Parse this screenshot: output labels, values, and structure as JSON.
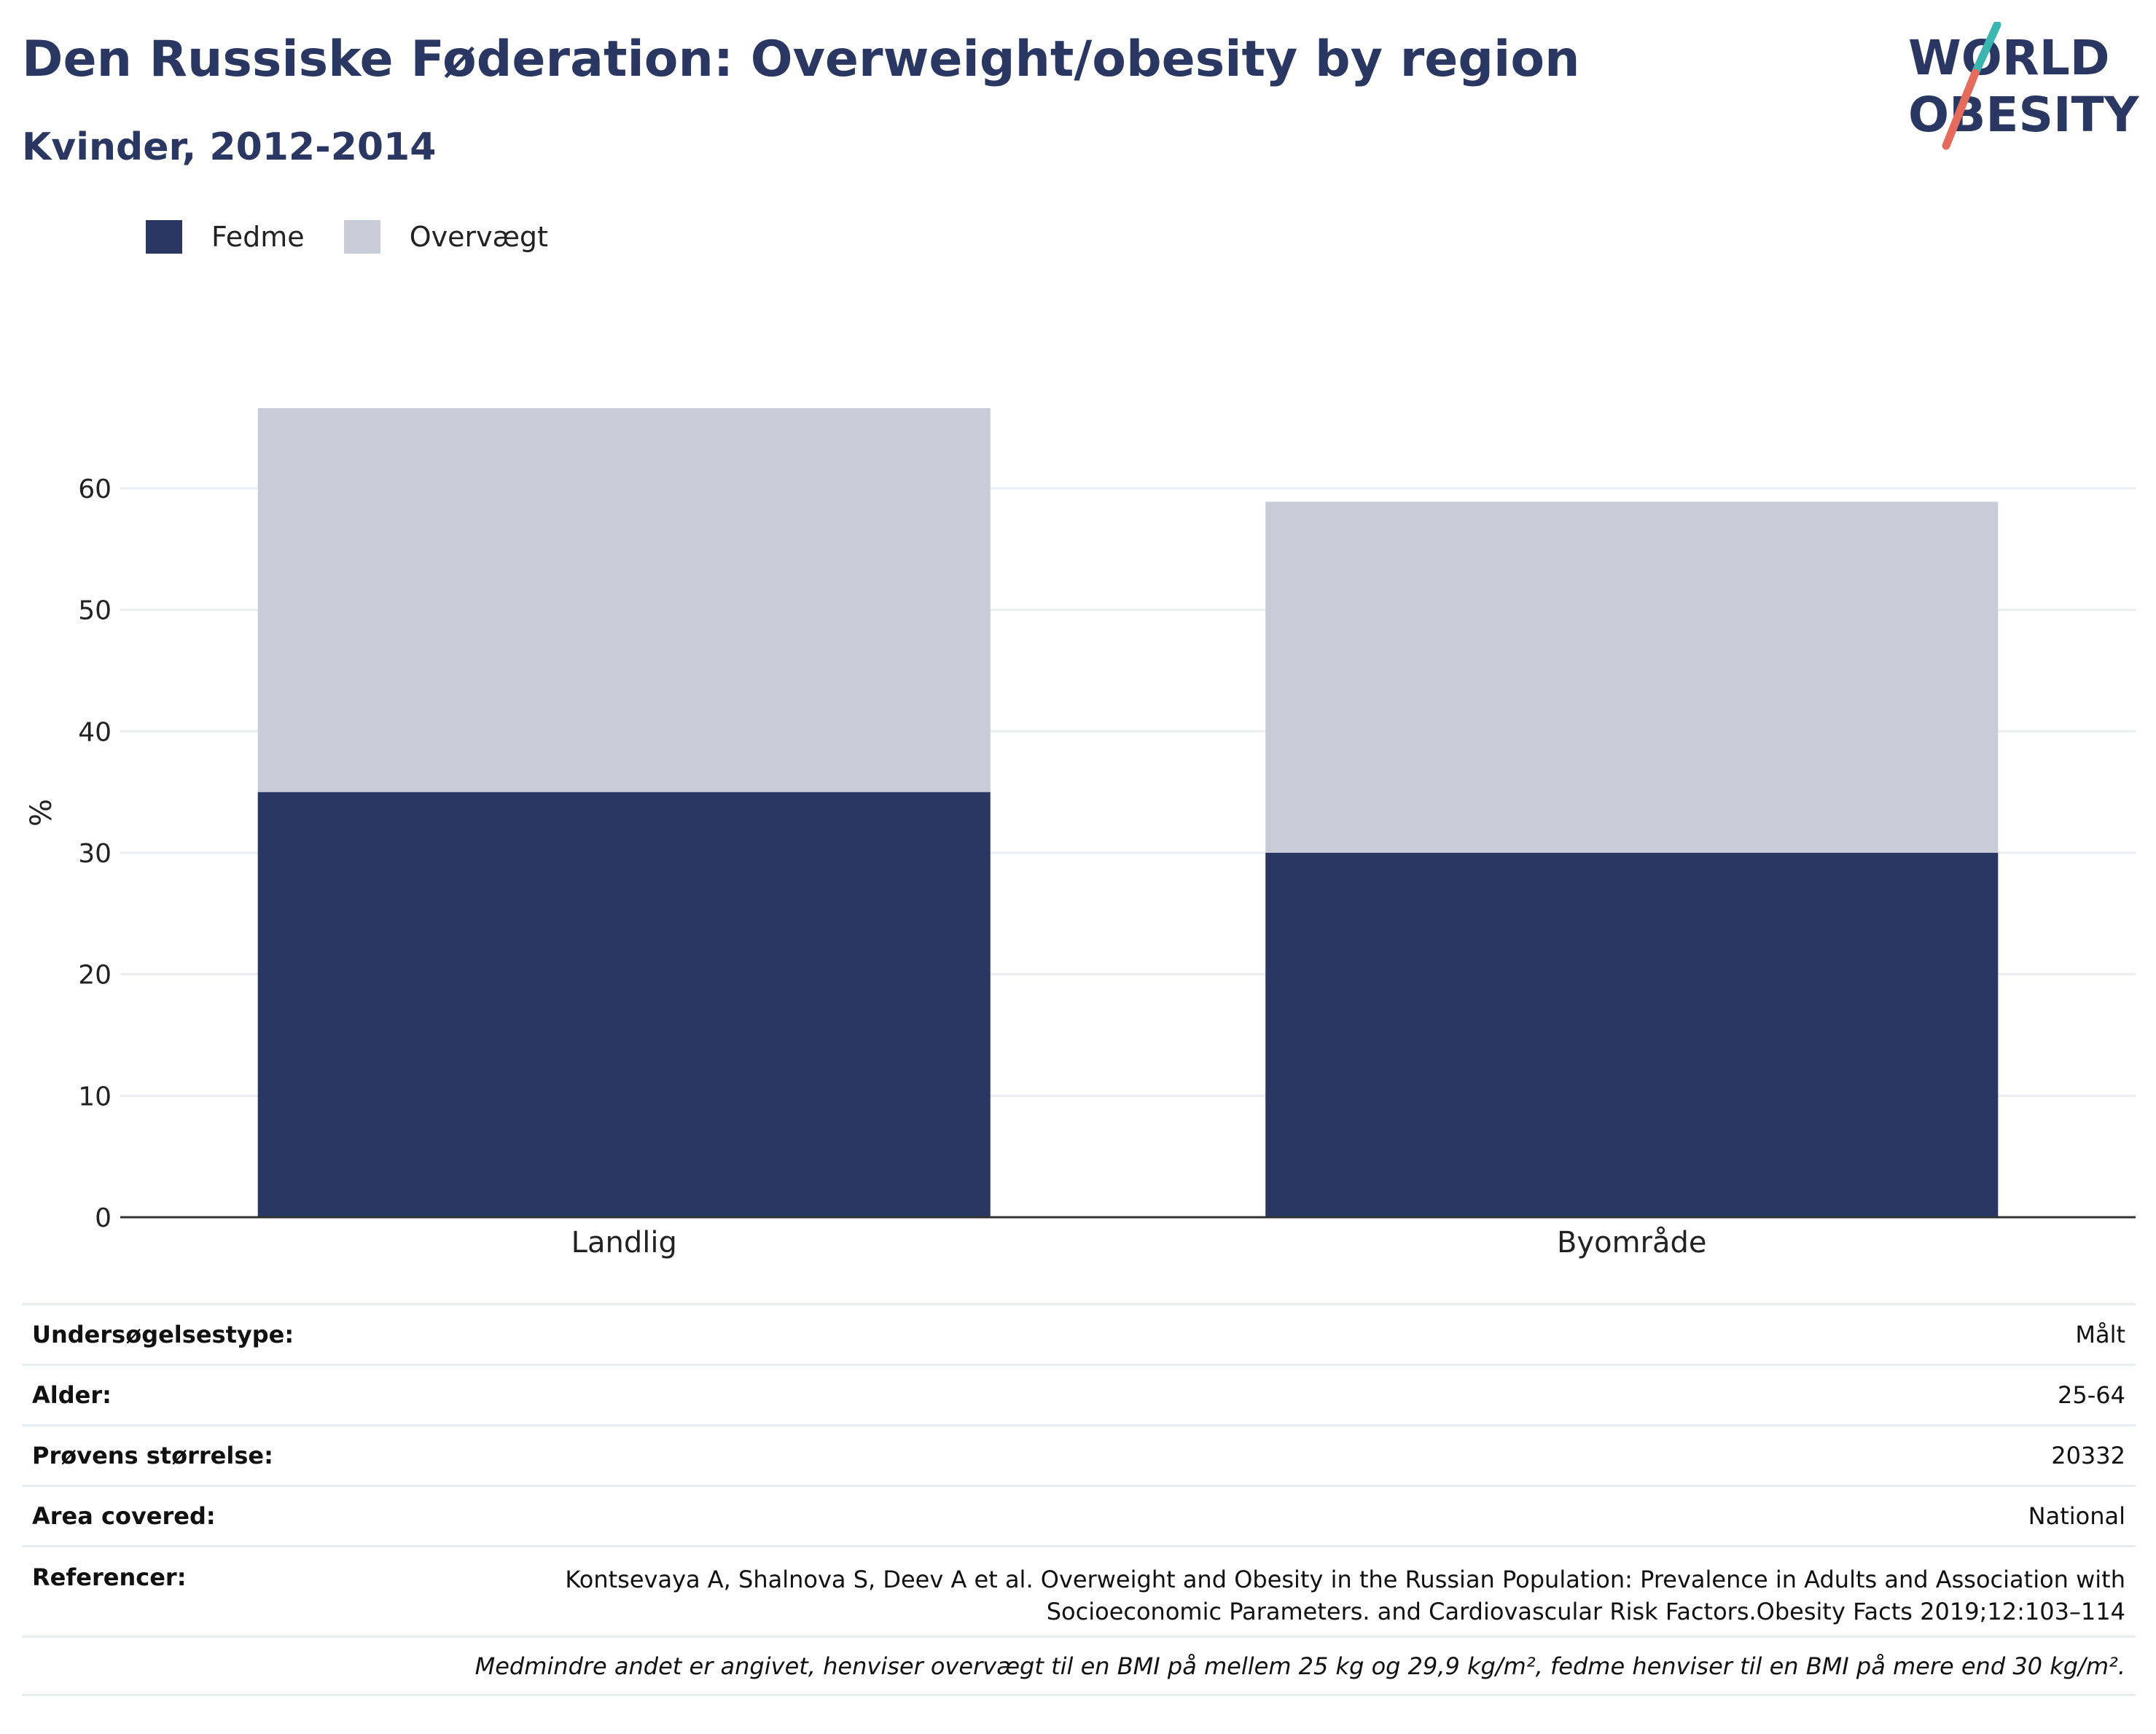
{
  "header": {
    "title": "Den Russiske Føderation: Overweight/obesity by region",
    "subtitle": "Kvinder, 2012-2014"
  },
  "logo": {
    "line1": "WORLD",
    "line2": "OBESITY",
    "colors": {
      "text": "#2a3763",
      "slash_top": "#3ab5b0",
      "slash_bottom": "#e56b5c"
    }
  },
  "colors": {
    "obesity": "#2a3763",
    "overweight": "#c9ccd7",
    "grid": "#ebedf1",
    "axis": "#333333"
  },
  "legend": [
    {
      "label": "Fedme",
      "color": "#2a3763"
    },
    {
      "label": "Overvægt",
      "color": "#c9ccd7"
    }
  ],
  "chart_data": {
    "type": "bar",
    "stacked": true,
    "title": "Den Russiske Føderation: Overweight/obesity by region",
    "subtitle": "Kvinder, 2012-2014",
    "categories": [
      "Landlig",
      "Byområde"
    ],
    "series": [
      {
        "name": "Fedme",
        "values": [
          35.0,
          30.0
        ]
      },
      {
        "name": "Overvægt",
        "values": [
          31.6,
          28.9
        ]
      }
    ],
    "ylabel": "%",
    "ylim": [
      0,
      66.6
    ],
    "yticks": [
      0,
      10,
      20,
      30,
      40,
      50,
      60
    ],
    "grid": true,
    "legend_position": "top-left"
  },
  "info": {
    "rows": [
      {
        "key": "Undersøgelsestype:",
        "value": "Målt"
      },
      {
        "key": "Alder:",
        "value": "25-64"
      },
      {
        "key": "Prøvens størrelse:",
        "value": "20332"
      },
      {
        "key": "Area covered:",
        "value": "National"
      }
    ],
    "references_key": "Referencer:",
    "references_line1": "Kontsevaya A, Shalnova S, Deev A et al. Overweight and Obesity in the Russian Population: Prevalence in Adults and Association with",
    "references_line2": "Socioeconomic Parameters. and Cardiovascular Risk Factors.Obesity Facts 2019;12:103–114",
    "note": "Medmindre andet er angivet, henviser overvægt til en BMI på mellem 25 kg og 29,9 kg/m², fedme henviser til en BMI på mere end 30 kg/m²."
  }
}
